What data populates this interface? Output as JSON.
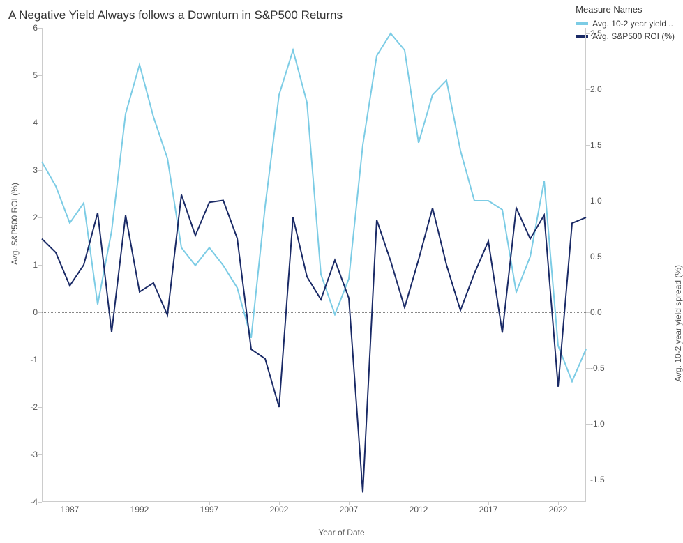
{
  "title": "A Negative Yield Always follows a Downturn in S&P500 Returns",
  "legend": {
    "title": "Measure Names",
    "items": [
      {
        "label": "Avg. 10-2 year yield ..",
        "color": "#7ccce5"
      },
      {
        "label": "Avg. S&P500 ROI (%)",
        "color": "#1a2a66"
      }
    ]
  },
  "chart": {
    "type": "dual-axis-line",
    "background_color": "#ffffff",
    "grid_color": "#cccccc",
    "zero_line_color": "#888888",
    "line_width": 2,
    "x": {
      "label": "Year of Date",
      "min": 1985,
      "max": 2024,
      "ticks": [
        1987,
        1992,
        1997,
        2002,
        2007,
        2012,
        2017,
        2022
      ]
    },
    "y_left": {
      "label": "Avg. S&P500 ROI (%)",
      "min": -4,
      "max": 6,
      "ticks": [
        -4,
        -3,
        -2,
        -1,
        0,
        1,
        2,
        3,
        4,
        5,
        6
      ],
      "series_color": "#1a2a66"
    },
    "y_right": {
      "label": "Avg. 10-2 year yield spread (%)",
      "min": -1.7,
      "max": 2.55,
      "ticks": [
        -1.5,
        -1.0,
        -0.5,
        0.0,
        0.5,
        1.0,
        1.5,
        2.0,
        2.5
      ],
      "series_color": "#7ccce5"
    },
    "series": {
      "roi": [
        [
          1985,
          1.55
        ],
        [
          1986,
          1.26
        ],
        [
          1987,
          0.56
        ],
        [
          1988,
          1.0
        ],
        [
          1989,
          2.1
        ],
        [
          1990,
          -0.42
        ],
        [
          1991,
          2.05
        ],
        [
          1992,
          0.43
        ],
        [
          1993,
          0.62
        ],
        [
          1994,
          -0.06
        ],
        [
          1995,
          2.48
        ],
        [
          1996,
          1.62
        ],
        [
          1997,
          2.32
        ],
        [
          1998,
          2.36
        ],
        [
          1999,
          1.56
        ],
        [
          2000,
          -0.78
        ],
        [
          2001,
          -0.98
        ],
        [
          2002,
          -2.0
        ],
        [
          2003,
          2.0
        ],
        [
          2004,
          0.75
        ],
        [
          2005,
          0.27
        ],
        [
          2006,
          1.1
        ],
        [
          2007,
          0.3
        ],
        [
          2008,
          -3.8
        ],
        [
          2009,
          1.95
        ],
        [
          2010,
          1.08
        ],
        [
          2011,
          0.1
        ],
        [
          2012,
          1.11
        ],
        [
          2013,
          2.2
        ],
        [
          2014,
          1.0
        ],
        [
          2015,
          0.04
        ],
        [
          2016,
          0.82
        ],
        [
          2017,
          1.5
        ],
        [
          2018,
          -0.43
        ],
        [
          2019,
          2.2
        ],
        [
          2020,
          1.55
        ],
        [
          2021,
          2.05
        ],
        [
          2022,
          -1.57
        ],
        [
          2023,
          1.88
        ],
        [
          2024,
          2.0
        ]
      ],
      "yield": [
        [
          1985,
          1.35
        ],
        [
          1986,
          1.13
        ],
        [
          1987,
          0.8
        ],
        [
          1988,
          0.98
        ],
        [
          1989,
          0.07
        ],
        [
          1990,
          0.73
        ],
        [
          1991,
          1.78
        ],
        [
          1992,
          2.22
        ],
        [
          1993,
          1.75
        ],
        [
          1994,
          1.38
        ],
        [
          1995,
          0.58
        ],
        [
          1996,
          0.42
        ],
        [
          1997,
          0.58
        ],
        [
          1998,
          0.42
        ],
        [
          1999,
          0.22
        ],
        [
          2000,
          -0.23
        ],
        [
          2001,
          0.95
        ],
        [
          2002,
          1.95
        ],
        [
          2003,
          2.35
        ],
        [
          2004,
          1.88
        ],
        [
          2005,
          0.34
        ],
        [
          2006,
          -0.02
        ],
        [
          2007,
          0.3
        ],
        [
          2008,
          1.5
        ],
        [
          2009,
          2.3
        ],
        [
          2010,
          2.5
        ],
        [
          2011,
          2.35
        ],
        [
          2012,
          1.52
        ],
        [
          2013,
          1.95
        ],
        [
          2014,
          2.08
        ],
        [
          2015,
          1.45
        ],
        [
          2016,
          1.0
        ],
        [
          2017,
          1.0
        ],
        [
          2018,
          0.92
        ],
        [
          2019,
          0.18
        ],
        [
          2020,
          0.5
        ],
        [
          2021,
          1.18
        ],
        [
          2022,
          -0.3
        ],
        [
          2023,
          -0.62
        ],
        [
          2024,
          -0.33
        ]
      ]
    },
    "title_fontsize": 17,
    "label_fontsize": 12,
    "tick_fontsize": 12
  }
}
